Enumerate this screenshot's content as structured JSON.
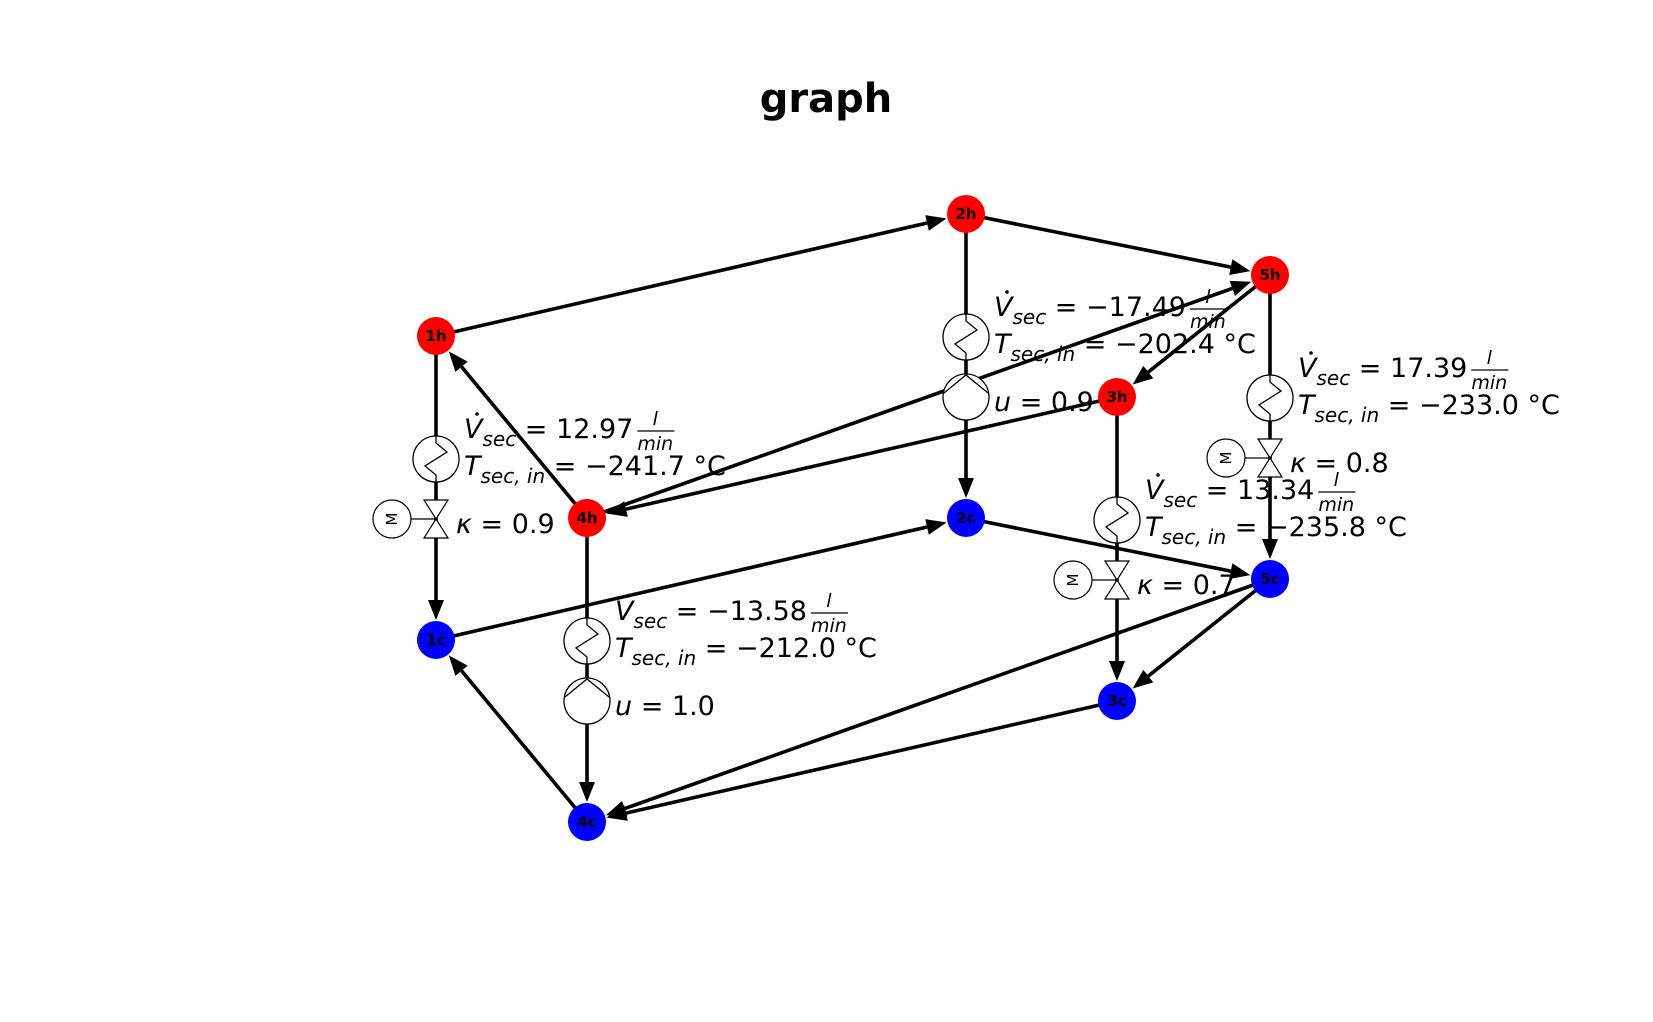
{
  "title": "graph",
  "colors": {
    "hot": "#ff0000",
    "cold": "#0000ff",
    "edge": "#000000"
  },
  "nodes": [
    {
      "id": "1h",
      "label": "1h",
      "type": "hot"
    },
    {
      "id": "2h",
      "label": "2h",
      "type": "hot"
    },
    {
      "id": "3h",
      "label": "3h",
      "type": "hot"
    },
    {
      "id": "4h",
      "label": "4h",
      "type": "hot"
    },
    {
      "id": "5h",
      "label": "5h",
      "type": "hot"
    },
    {
      "id": "1c",
      "label": "1c",
      "type": "cold"
    },
    {
      "id": "2c",
      "label": "2c",
      "type": "cold"
    },
    {
      "id": "3c",
      "label": "3c",
      "type": "cold"
    },
    {
      "id": "4c",
      "label": "4c",
      "type": "cold"
    },
    {
      "id": "5c",
      "label": "5c",
      "type": "cold"
    }
  ],
  "edges": [
    {
      "from": "1h",
      "to": "2h"
    },
    {
      "from": "2h",
      "to": "5h"
    },
    {
      "from": "5h",
      "to": "3h"
    },
    {
      "from": "3h",
      "to": "4h"
    },
    {
      "from": "4h",
      "to": "1h"
    },
    {
      "from": "4h",
      "to": "5h"
    },
    {
      "from": "1h",
      "to": "1c"
    },
    {
      "from": "2h",
      "to": "2c"
    },
    {
      "from": "3h",
      "to": "3c"
    },
    {
      "from": "4h",
      "to": "4c"
    },
    {
      "from": "5h",
      "to": "5c"
    },
    {
      "from": "1c",
      "to": "2c"
    },
    {
      "from": "2c",
      "to": "5c"
    },
    {
      "from": "5c",
      "to": "3c"
    },
    {
      "from": "3c",
      "to": "4c"
    },
    {
      "from": "4c",
      "to": "1c"
    },
    {
      "from": "5c",
      "to": "4c"
    }
  ],
  "consumers": [
    {
      "edge": "1h-1c",
      "v_sec": "12.97",
      "t_sec_in": "−241.7",
      "kind": "valve",
      "control_value": "0.9",
      "motor_label": "M"
    },
    {
      "edge": "2h-2c",
      "v_sec": "−17.49",
      "t_sec_in": "−202.4",
      "kind": "pump",
      "control_value": "0.9"
    },
    {
      "edge": "3h-3c",
      "v_sec": "13.34",
      "t_sec_in": "−235.8",
      "kind": "valve",
      "control_value": "0.7",
      "motor_label": "M"
    },
    {
      "edge": "4h-4c",
      "v_sec": "−13.58",
      "t_sec_in": "−212.0",
      "kind": "pump",
      "control_value": "1.0"
    },
    {
      "edge": "5h-5c",
      "v_sec": "17.39",
      "t_sec_in": "−233.0",
      "kind": "valve",
      "control_value": "0.8",
      "motor_label": "M"
    }
  ],
  "symbols": {
    "v_symbol": "V",
    "v_sub": "sec",
    "t_symbol": "T",
    "t_sub": "sec, in",
    "unit_num": "l",
    "unit_den": "min",
    "temp_unit": "°C",
    "kappa": "κ",
    "u": "u",
    "equals": "="
  }
}
